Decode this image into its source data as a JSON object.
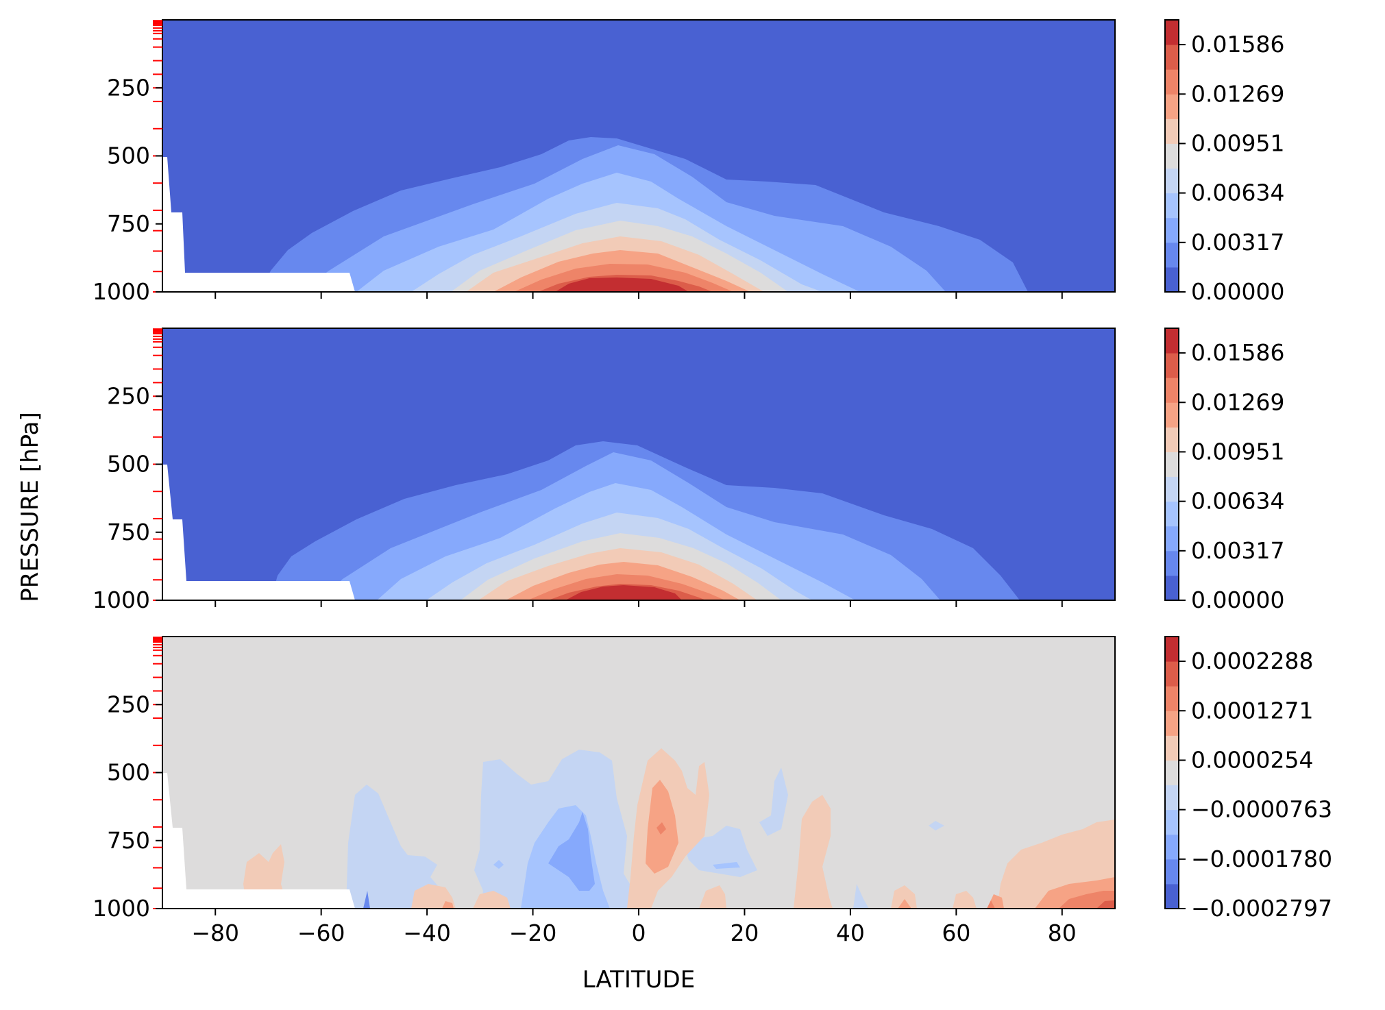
{
  "figure": {
    "ylabel": "PRESSURE [hPa]",
    "xlabel": "LATITUDE"
  },
  "chart_data": [
    {
      "type": "heatmap",
      "panel": "top",
      "xlim": [
        -90,
        90
      ],
      "ylim": [
        1000,
        0
      ],
      "y_inverted": true,
      "x_ticks": [
        -80,
        -60,
        -40,
        -20,
        0,
        20,
        40,
        60,
        80
      ],
      "y_ticks": [
        250,
        500,
        750,
        1000
      ],
      "y_tick_labels": [
        "250",
        "500",
        "750",
        "1000"
      ],
      "colormap": "coolwarm",
      "levels": [
        0.0,
        0.001586,
        0.003172,
        0.004758,
        0.006344,
        0.00793,
        0.009516,
        0.011102,
        0.012688,
        0.014274,
        0.01586,
        0.017446
      ],
      "colorbar_ticks": [
        "0.00000",
        "0.00317",
        "0.00634",
        "0.00951",
        "0.01269",
        "0.01586"
      ],
      "colorbar_tick_values": [
        0.0,
        0.00317,
        0.00634,
        0.00951,
        0.01269,
        0.01586
      ],
      "colors": [
        "#4961d2",
        "#6788ee",
        "#86a9fc",
        "#a6c4fe",
        "#c4d5f3",
        "#dddcdc",
        "#f2cbb7",
        "#f6a385",
        "#ee8468",
        "#dc5d4a",
        "#c32e31"
      ],
      "field_description_points": {
        "peak_latitude": -2,
        "peak_value": 0.0165,
        "surface_level": 1000
      }
    },
    {
      "type": "heatmap",
      "panel": "middle",
      "xlim": [
        -90,
        90
      ],
      "ylim": [
        1000,
        0
      ],
      "y_inverted": true,
      "x_ticks": [
        -80,
        -60,
        -40,
        -20,
        0,
        20,
        40,
        60,
        80
      ],
      "y_ticks": [
        250,
        500,
        750,
        1000
      ],
      "y_tick_labels": [
        "250",
        "500",
        "750",
        "1000"
      ],
      "colormap": "coolwarm",
      "colorbar_ticks": [
        "0.00000",
        "0.00317",
        "0.00634",
        "0.00951",
        "0.01269",
        "0.01586"
      ],
      "colorbar_tick_values": [
        0.0,
        0.00317,
        0.00634,
        0.00951,
        0.01269,
        0.01586
      ],
      "colors": [
        "#4961d2",
        "#6788ee",
        "#86a9fc",
        "#a6c4fe",
        "#c4d5f3",
        "#dddcdc",
        "#f2cbb7",
        "#f6a385",
        "#ee8468",
        "#dc5d4a",
        "#c32e31"
      ]
    },
    {
      "type": "heatmap",
      "panel": "bottom",
      "xlim": [
        -90,
        90
      ],
      "ylim": [
        1000,
        0
      ],
      "y_inverted": true,
      "x_ticks": [
        -80,
        -60,
        -40,
        -20,
        0,
        20,
        40,
        60,
        80
      ],
      "x_tick_labels": [
        "−80",
        "−60",
        "−40",
        "−20",
        "0",
        "20",
        "40",
        "60",
        "80"
      ],
      "y_ticks": [
        250,
        500,
        750,
        1000
      ],
      "y_tick_labels": [
        "250",
        "500",
        "750",
        "1000"
      ],
      "colormap": "coolwarm",
      "colorbar_ticks": [
        "−0.0002797",
        "−0.0001780",
        "−0.0000763",
        "0.0000254",
        "0.0001271",
        "0.0002288"
      ],
      "colorbar_tick_values": [
        -0.0002797,
        -0.000178,
        -7.63e-05,
        2.54e-05,
        0.0001271,
        0.0002288
      ],
      "colors": [
        "#4961d2",
        "#6788ee",
        "#86a9fc",
        "#a6c4fe",
        "#c4d5f3",
        "#dddcdc",
        "#f2cbb7",
        "#f6a385",
        "#ee8468",
        "#dc5d4a",
        "#c32e31"
      ]
    }
  ]
}
